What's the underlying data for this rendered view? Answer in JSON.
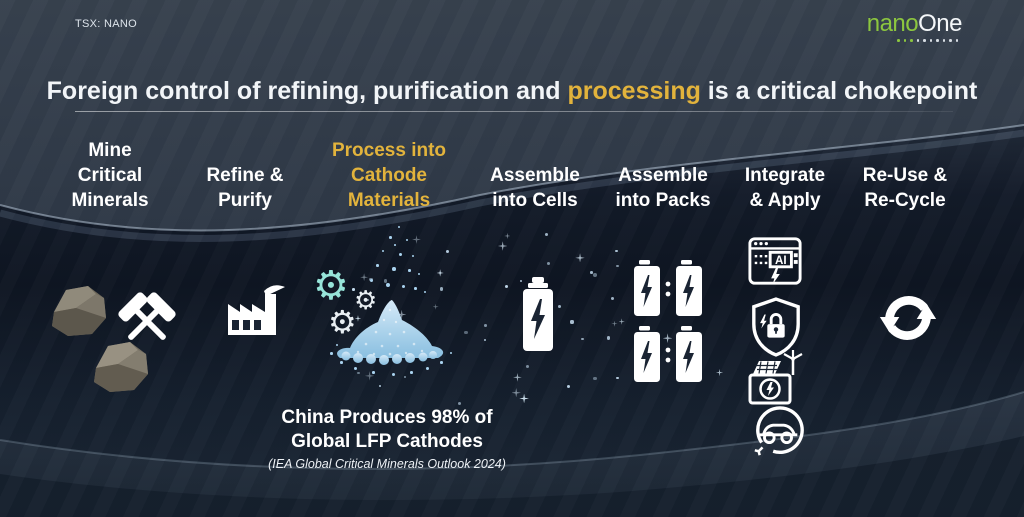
{
  "slide": {
    "ticker": "TSX: NANO",
    "logo": {
      "green": "nano",
      "white": "One"
    },
    "title": {
      "pre": "Foreign control of refining, purification and ",
      "highlight": "processing",
      "post": " is a critical chokepoint"
    },
    "columns": [
      {
        "label": "Mine\nCritical\nMinerals",
        "highlighted": false,
        "icons": [
          "rocks-icon",
          "crossed-hammers-icon"
        ]
      },
      {
        "label": "Refine &\nPurify",
        "highlighted": false,
        "icons": [
          "factory-icon"
        ]
      },
      {
        "label": "Process into\nCathode\nMaterials",
        "highlighted": true,
        "icons": [
          "gears-icon",
          "cathode-powder-pile-icon"
        ]
      },
      {
        "label": "Assemble\ninto Cells",
        "highlighted": false,
        "icons": [
          "battery-cell-icon"
        ]
      },
      {
        "label": "Assemble\ninto Packs",
        "highlighted": false,
        "icons": [
          "battery-pack-icon"
        ]
      },
      {
        "label": "Integrate\n& Apply",
        "highlighted": false,
        "icons": [
          "ai-server-icon",
          "security-shield-icon",
          "renewable-storage-icon",
          "electric-vehicle-icon"
        ]
      },
      {
        "label": "Re-Use &\nRe-Cycle",
        "highlighted": false,
        "icons": [
          "recycle-arrows-icon"
        ]
      }
    ],
    "caption": {
      "headline": "China Produces 98% of\nGlobal LFP Cathodes",
      "source": "(IEA Global Critical Minerals Outlook 2024)"
    },
    "colors": {
      "accent_yellow": "#E2B33C",
      "logo_green": "#8CC63F",
      "powder_blue": "#9FCBE8",
      "gear_teal": "#97E5D9",
      "background_dark": "#121A28"
    }
  }
}
